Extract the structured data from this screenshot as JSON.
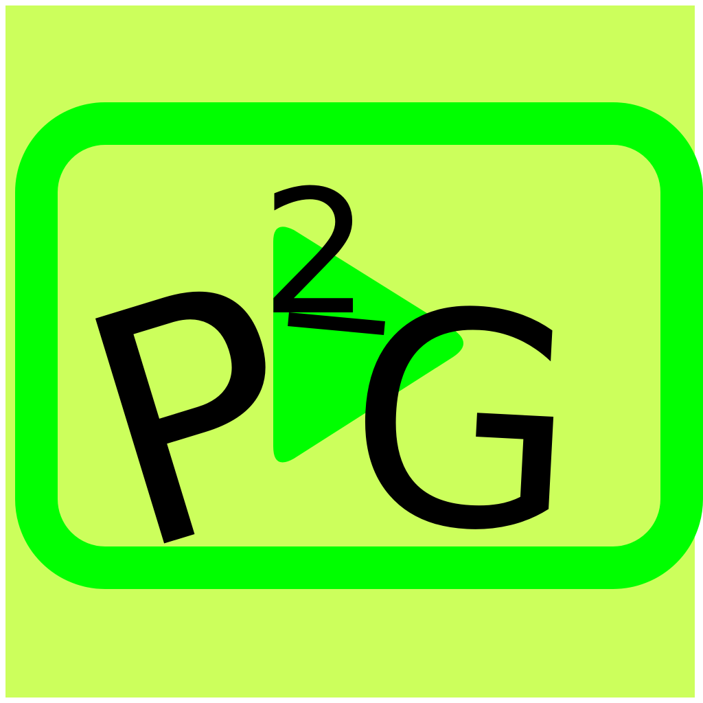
{
  "logo": {
    "letter_left": "P",
    "superscript": "2",
    "letter_right": "G",
    "colors": {
      "background": "#ccff5c",
      "frame": "#00ff00",
      "play": "#00ff00",
      "text": "#000000"
    },
    "icons": [
      "rounded-frame-icon",
      "play-icon"
    ]
  }
}
